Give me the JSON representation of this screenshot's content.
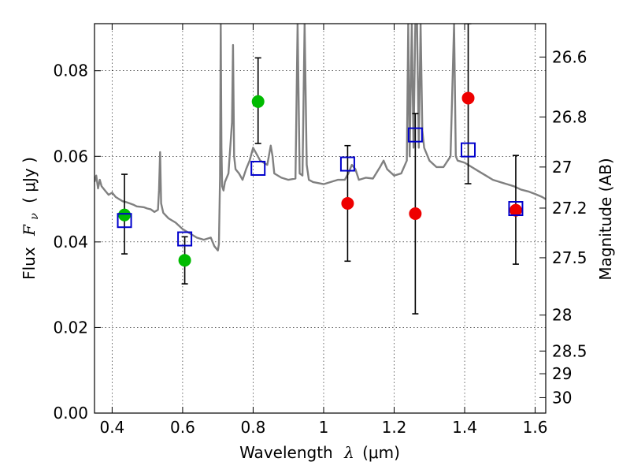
{
  "chart_data": {
    "type": "scatter",
    "title": "",
    "xlabel": "Wavelength",
    "xlabel_symbol": "λ",
    "xlabel_unit": "(μm)",
    "ylabel": "Flux",
    "ylabel_symbol": "F",
    "ylabel_subscript": "ν",
    "ylabel_unit": "( μJy )",
    "y2label": "Magnitude (AB)",
    "xlim": [
      0.35,
      1.63
    ],
    "ylim": [
      0.0,
      0.091
    ],
    "grid": true,
    "x_ticks": [
      0.4,
      0.6,
      0.8,
      1.0,
      1.2,
      1.4,
      1.6
    ],
    "x_tick_labels": [
      "0.4",
      "0.6",
      "0.8",
      "1",
      "1.2",
      "1.4",
      "1.6"
    ],
    "y_ticks": [
      0.0,
      0.02,
      0.04,
      0.06,
      0.08
    ],
    "y_tick_labels": [
      "0.00",
      "0.02",
      "0.04",
      "0.06",
      "0.08"
    ],
    "y2_ticks": [
      {
        "label": "26.6",
        "flux": 0.0832
      },
      {
        "label": "26.8",
        "flux": 0.0692
      },
      {
        "label": "27",
        "flux": 0.0575
      },
      {
        "label": "27.2",
        "flux": 0.0479
      },
      {
        "label": "27.5",
        "flux": 0.0363
      },
      {
        "label": "28",
        "flux": 0.0229
      },
      {
        "label": "28.5",
        "flux": 0.0145
      },
      {
        "label": "29",
        "flux": 0.0092
      },
      {
        "label": "30",
        "flux": 0.0036
      }
    ],
    "colors": {
      "model": "#808080",
      "green": "#00bb00",
      "red": "#ee0000",
      "box": "#0000cc",
      "errorbar": "#000000"
    },
    "series": [
      {
        "marker": "circle",
        "color": "green",
        "points": [
          {
            "x": 0.435,
            "y": 0.0463,
            "ylo": 0.0372,
            "yhi": 0.0558
          },
          {
            "x": 0.606,
            "y": 0.0357,
            "ylo": 0.0302,
            "yhi": 0.0412
          },
          {
            "x": 0.814,
            "y": 0.0728,
            "ylo": 0.063,
            "yhi": 0.083
          }
        ]
      },
      {
        "marker": "circle",
        "color": "red",
        "points": [
          {
            "x": 1.068,
            "y": 0.049,
            "ylo": 0.0355,
            "yhi": 0.0625
          },
          {
            "x": 1.26,
            "y": 0.0466,
            "ylo": 0.0232,
            "yhi": 0.07
          },
          {
            "x": 1.41,
            "y": 0.0736,
            "ylo": 0.0536,
            "yhi": 0.091
          },
          {
            "x": 1.545,
            "y": 0.0474,
            "ylo": 0.0348,
            "yhi": 0.0602
          }
        ]
      },
      {
        "marker": "open-square",
        "color": "box",
        "points": [
          {
            "x": 0.435,
            "y": 0.045
          },
          {
            "x": 0.606,
            "y": 0.0407
          },
          {
            "x": 0.814,
            "y": 0.0572
          },
          {
            "x": 1.068,
            "y": 0.0582
          },
          {
            "x": 1.26,
            "y": 0.065
          },
          {
            "x": 1.41,
            "y": 0.0615
          },
          {
            "x": 1.545,
            "y": 0.0478
          }
        ]
      }
    ],
    "model_spectrum": {
      "color": "model",
      "x": [
        0.35,
        0.355,
        0.36,
        0.365,
        0.37,
        0.38,
        0.39,
        0.4,
        0.41,
        0.42,
        0.43,
        0.44,
        0.45,
        0.46,
        0.47,
        0.48,
        0.49,
        0.5,
        0.51,
        0.52,
        0.53,
        0.533,
        0.536,
        0.539,
        0.545,
        0.56,
        0.58,
        0.6,
        0.62,
        0.64,
        0.66,
        0.68,
        0.69,
        0.7,
        0.703,
        0.706,
        0.708,
        0.71,
        0.712,
        0.716,
        0.72,
        0.73,
        0.74,
        0.743,
        0.746,
        0.75,
        0.76,
        0.77,
        0.78,
        0.79,
        0.8,
        0.82,
        0.84,
        0.85,
        0.855,
        0.86,
        0.88,
        0.9,
        0.92,
        0.926,
        0.932,
        0.94,
        0.946,
        0.952,
        0.958,
        0.97,
        1.0,
        1.02,
        1.04,
        1.06,
        1.07,
        1.08,
        1.09,
        1.1,
        1.12,
        1.14,
        1.16,
        1.17,
        1.18,
        1.2,
        1.22,
        1.236,
        1.24,
        1.244,
        1.25,
        1.255,
        1.26,
        1.265,
        1.27,
        1.275,
        1.28,
        1.285,
        1.3,
        1.32,
        1.34,
        1.36,
        1.37,
        1.375,
        1.38,
        1.4,
        1.42,
        1.44,
        1.46,
        1.48,
        1.5,
        1.52,
        1.54,
        1.56,
        1.58,
        1.6,
        1.62,
        1.63
      ],
      "y": [
        0.054,
        0.0555,
        0.0525,
        0.0545,
        0.053,
        0.052,
        0.051,
        0.0515,
        0.0505,
        0.05,
        0.0495,
        0.0493,
        0.049,
        0.0487,
        0.0483,
        0.0482,
        0.0481,
        0.0478,
        0.0476,
        0.047,
        0.0475,
        0.052,
        0.061,
        0.049,
        0.0468,
        0.0455,
        0.0445,
        0.043,
        0.042,
        0.041,
        0.0405,
        0.041,
        0.039,
        0.038,
        0.0395,
        0.055,
        0.091,
        0.062,
        0.053,
        0.052,
        0.054,
        0.056,
        0.068,
        0.086,
        0.06,
        0.057,
        0.056,
        0.0545,
        0.057,
        0.059,
        0.062,
        0.059,
        0.058,
        0.0625,
        0.06,
        0.056,
        0.055,
        0.0545,
        0.0548,
        0.091,
        0.056,
        0.0555,
        0.091,
        0.058,
        0.0545,
        0.054,
        0.0535,
        0.054,
        0.0545,
        0.0545,
        0.056,
        0.058,
        0.057,
        0.0545,
        0.055,
        0.0548,
        0.0575,
        0.059,
        0.057,
        0.0555,
        0.056,
        0.059,
        0.091,
        0.06,
        0.091,
        0.062,
        0.091,
        0.091,
        0.062,
        0.091,
        0.066,
        0.062,
        0.059,
        0.0575,
        0.0575,
        0.06,
        0.091,
        0.06,
        0.059,
        0.0585,
        0.0575,
        0.0565,
        0.0555,
        0.0545,
        0.054,
        0.0535,
        0.053,
        0.0522,
        0.0518,
        0.0512,
        0.0505,
        0.05
      ]
    }
  }
}
